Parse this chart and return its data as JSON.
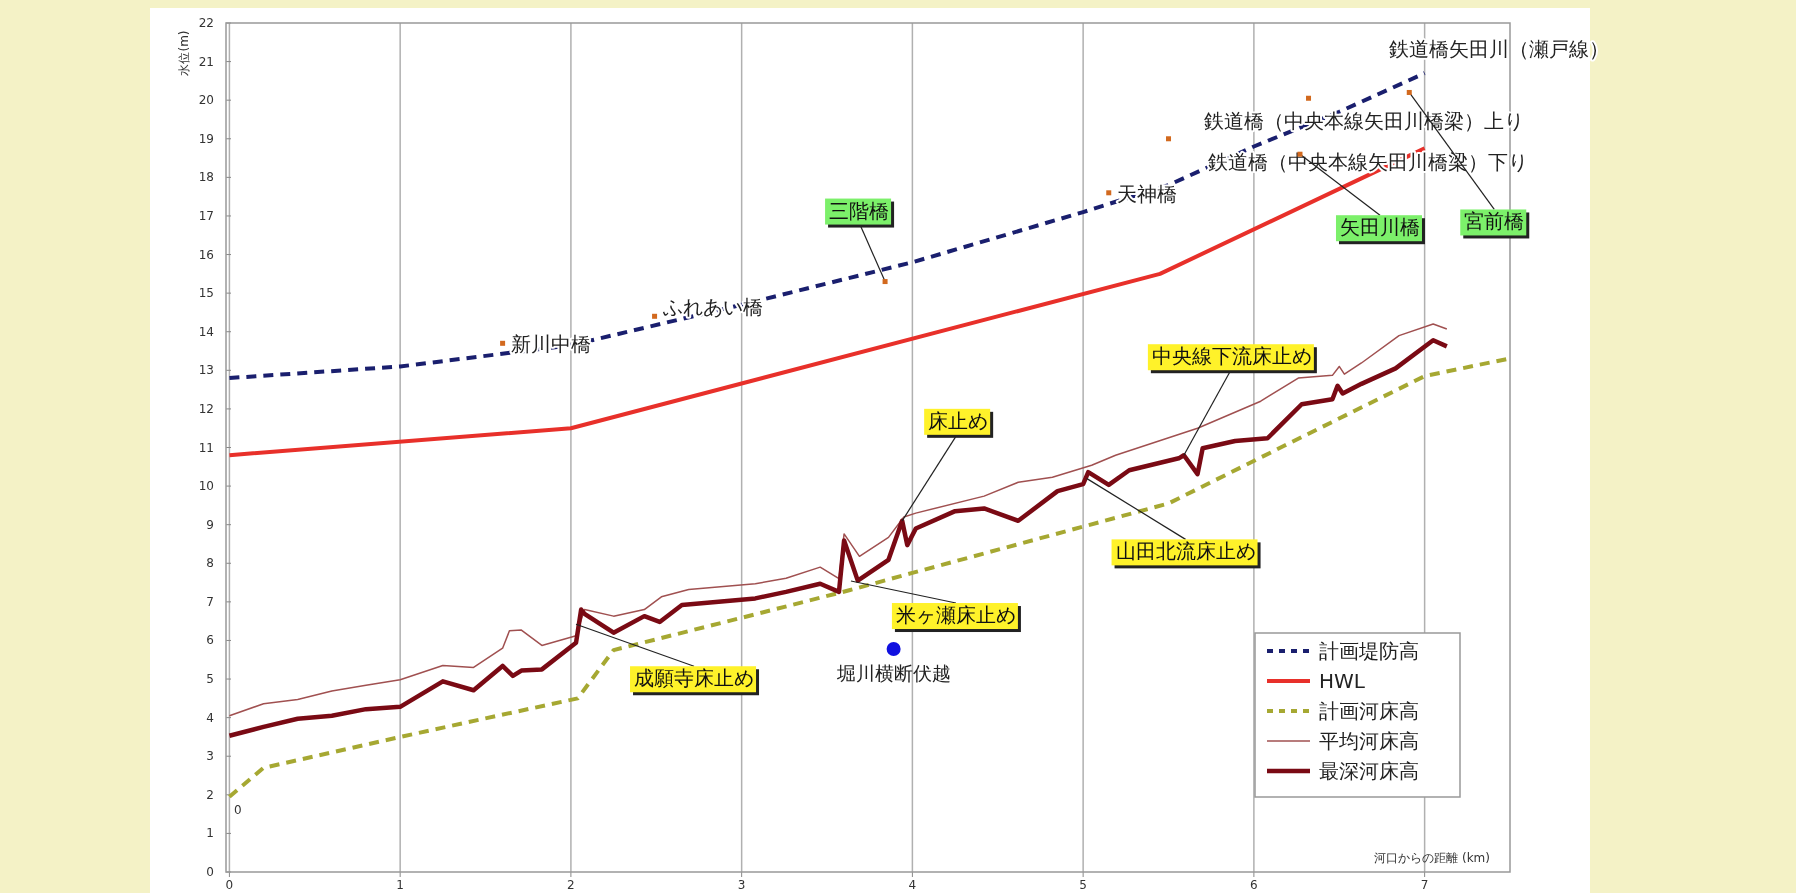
{
  "chart_data": {
    "type": "line",
    "xlabel": "河口からの距離 (km)",
    "ylabel": "水位(m)",
    "xlim": [
      -0.02,
      7.5
    ],
    "ylim": [
      0,
      22
    ],
    "xticks": [
      0,
      1,
      2,
      3,
      4,
      5,
      6,
      7
    ],
    "yticks": [
      0,
      1,
      2,
      3,
      4,
      5,
      6,
      7,
      8,
      9,
      10,
      11,
      12,
      13,
      14,
      15,
      16,
      17,
      18,
      19,
      20,
      21,
      22
    ],
    "grid": "x",
    "legend": "bottom right",
    "series": [
      {
        "name": "計画堤防高",
        "color": "#1a1f6e",
        "line_style": "dashed",
        "x": [
          0,
          1,
          2,
          3,
          4,
          5,
          5.5,
          6,
          6.5,
          7
        ],
        "values": [
          12.8,
          13.1,
          13.65,
          14.7,
          15.8,
          17.1,
          17.8,
          18.8,
          19.7,
          20.7
        ]
      },
      {
        "name": "HWL",
        "color": "#e8302a",
        "line_style": "solid",
        "x": [
          0,
          2,
          5.45,
          7
        ],
        "values": [
          10.8,
          11.5,
          15.5,
          18.75
        ]
      },
      {
        "name": "計画河床高",
        "color": "#a6a832",
        "line_style": "dashed",
        "x": [
          0,
          0.2,
          1,
          2.04,
          2.25,
          3.1,
          3.63,
          4,
          5.5,
          6.18,
          7,
          7.49
        ],
        "values": [
          1.95,
          2.7,
          3.5,
          4.5,
          5.75,
          6.7,
          7.3,
          7.75,
          9.55,
          11.05,
          12.85,
          13.3
        ]
      },
      {
        "name": "平均河床高",
        "color": "#a05050",
        "line_style": "solid",
        "x": [
          0,
          0.2,
          0.4,
          0.6,
          0.8,
          1,
          1.25,
          1.43,
          1.6,
          1.64,
          1.71,
          1.83,
          2.03,
          2.08,
          2.25,
          2.43,
          2.53,
          2.69,
          3.08,
          3.26,
          3.46,
          3.57,
          3.6,
          3.69,
          3.86,
          3.95,
          4.02,
          4.42,
          4.62,
          4.82,
          5.05,
          5.19,
          5.67,
          6.04,
          6.26,
          6.46,
          6.5,
          6.53,
          6.63,
          6.85,
          7.05,
          7.13
        ],
        "values": [
          4.05,
          4.36,
          4.47,
          4.69,
          4.84,
          4.98,
          5.35,
          5.3,
          5.8,
          6.25,
          6.27,
          5.87,
          6.12,
          6.8,
          6.63,
          6.8,
          7.13,
          7.32,
          7.47,
          7.61,
          7.9,
          7.6,
          8.76,
          8.18,
          8.67,
          9.2,
          9.3,
          9.74,
          10.1,
          10.23,
          10.54,
          10.8,
          11.5,
          12.2,
          12.8,
          12.87,
          13.1,
          12.9,
          13.19,
          13.9,
          14.2,
          14.07
        ]
      },
      {
        "name": "最深河床高",
        "color": "#7a0a14",
        "line_style": "solid",
        "x": [
          0,
          0.2,
          0.4,
          0.6,
          0.8,
          1,
          1.25,
          1.43,
          1.6,
          1.66,
          1.71,
          1.83,
          2.03,
          2.06,
          2.08,
          2.25,
          2.43,
          2.52,
          2.65,
          3.08,
          3.26,
          3.46,
          3.57,
          3.6,
          3.68,
          3.86,
          3.94,
          3.97,
          4.02,
          4.25,
          4.42,
          4.62,
          4.85,
          5.0,
          5.03,
          5.15,
          5.27,
          5.56,
          5.59,
          5.67,
          5.7,
          5.89,
          6.08,
          6.28,
          6.46,
          6.49,
          6.52,
          6.63,
          6.83,
          7.05,
          7.13
        ],
        "values": [
          3.53,
          3.76,
          3.97,
          4.05,
          4.22,
          4.28,
          4.94,
          4.71,
          5.34,
          5.08,
          5.22,
          5.25,
          5.94,
          6.8,
          6.69,
          6.2,
          6.63,
          6.48,
          6.92,
          7.09,
          7.26,
          7.47,
          7.26,
          8.59,
          7.55,
          8.09,
          9.1,
          8.47,
          8.9,
          9.35,
          9.42,
          9.1,
          9.87,
          10.05,
          10.36,
          10.03,
          10.41,
          10.72,
          10.8,
          10.31,
          10.98,
          11.17,
          11.24,
          12.12,
          12.25,
          12.6,
          12.4,
          12.65,
          13.05,
          13.78,
          13.62
        ]
      },
      {
        "name": "堀川横断伏越",
        "type": "scatter",
        "marker": "circle",
        "color": "#1010e0",
        "x": [
          3.89
        ],
        "values": [
          5.78
        ]
      },
      {
        "type": "scatter",
        "marker": "square",
        "color": "#d2691e",
        "x": [
          1.6,
          2.49,
          3.84,
          5.15,
          6.32,
          5.5,
          6.91,
          6.27
        ],
        "values": [
          13.7,
          14.4,
          15.3,
          17.6,
          20.05,
          19.0,
          20.2,
          18.6
        ]
      }
    ],
    "annotations": [
      {
        "text": "新川中橋",
        "x": 1.6,
        "y": 13.7
      },
      {
        "text": "ふれあい橋",
        "x": 2.49,
        "y": 14.4
      },
      {
        "text": "三階橋",
        "x": 3.84,
        "y": 15.3
      },
      {
        "text": "天神橋",
        "x": 5.15,
        "y": 17.6
      },
      {
        "text": "鉄道橋（中央本線矢田川橋梁）上り",
        "x": 6.32,
        "y": 20.05
      },
      {
        "text": "鉄道橋（中央本線矢田川橋梁）下り",
        "x": 5.5,
        "y": 19.0
      },
      {
        "text": "宮前橋",
        "x": 6.91,
        "y": 20.2
      },
      {
        "text": "矢田川橋",
        "x": 6.27,
        "y": 18.6
      },
      {
        "text": "鉄道橋矢田川（瀬戸線）",
        "x": 6.98,
        "y": 20.7
      },
      {
        "text": "成願寺床止め",
        "x": 2.03,
        "y": 6.42
      },
      {
        "text": "米ヶ瀬床止め",
        "x": 3.64,
        "y": 7.54
      },
      {
        "text": "床止め",
        "x": 3.94,
        "y": 9.1
      },
      {
        "text": "山田北流床止め",
        "x": 5.02,
        "y": 10.2
      },
      {
        "text": "中央線下流床止め",
        "x": 5.59,
        "y": 10.8
      },
      "0"
    ]
  }
}
